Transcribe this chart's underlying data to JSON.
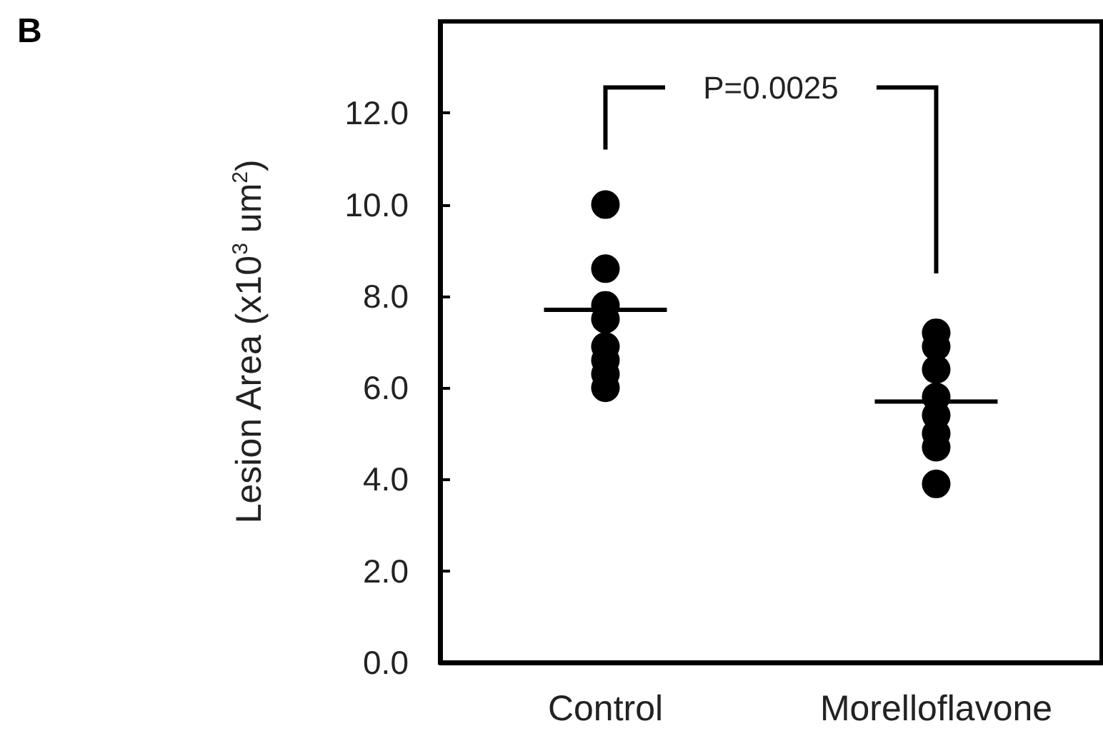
{
  "chart_data": {
    "type": "scatter",
    "ylabel": "Lesion Area (x10$^{3}$ um$^{2}$)",
    "annotations": [
      "B",
      "P=0.0025"
    ],
    "categories": [
      "Control",
      "Morelloflavone"
    ],
    "series": [
      {
        "color": "#000000",
        "x": [
          "Control",
          "Control",
          "Control",
          "Control",
          "Control",
          "Control",
          "Control",
          "Control"
        ],
        "values": [
          10.0,
          8.6,
          7.8,
          7.5,
          6.9,
          6.6,
          6.3,
          6.0
        ]
      },
      {
        "color": "#000000",
        "x": [
          "Morelloflavone",
          "Morelloflavone",
          "Morelloflavone",
          "Morelloflavone",
          "Morelloflavone",
          "Morelloflavone",
          "Morelloflavone",
          "Morelloflavone"
        ],
        "values": [
          7.2,
          6.9,
          6.4,
          5.8,
          5.4,
          5.0,
          4.7,
          3.9
        ]
      },
      {
        "type": "box",
        "color": "#000000",
        "boxes": [
          {
            "low": 7.7,
            "q1": 7.7,
            "median": 7.7,
            "q3": 7.7,
            "high": 7.7
          },
          {
            "low": 5.7,
            "q1": 5.7,
            "median": 5.7,
            "q3": 5.7,
            "high": 5.7
          }
        ]
      }
    ],
    "ylim": [
      0,
      14
    ],
    "yticks": [
      {
        "value": 0,
        "label": "0.0"
      },
      {
        "value": 2,
        "label": "2.0"
      },
      {
        "value": 4,
        "label": "4.0"
      },
      {
        "value": 6,
        "label": "6.0"
      },
      {
        "value": 8,
        "label": "8.0"
      },
      {
        "value": 10,
        "label": "10.0"
      },
      {
        "value": 12,
        "label": "12.0"
      }
    ],
    "marker": "circle"
  }
}
